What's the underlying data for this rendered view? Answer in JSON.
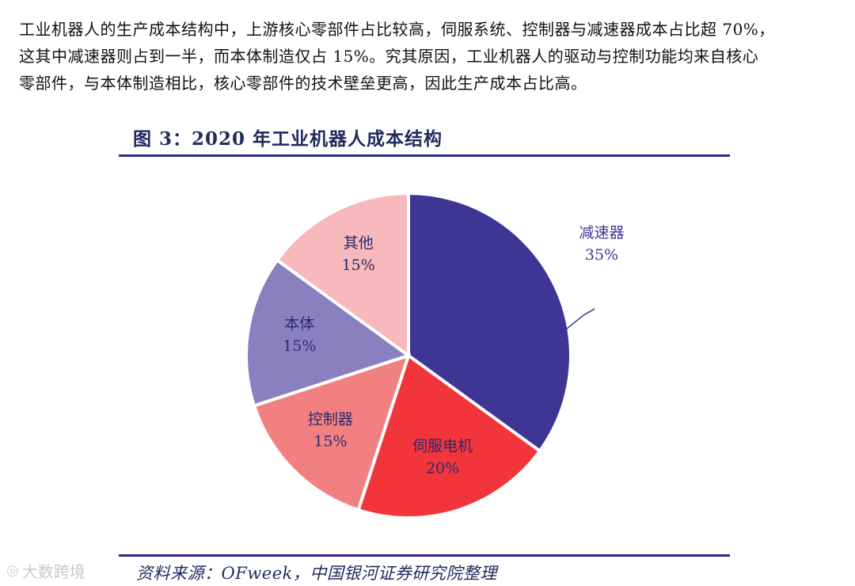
{
  "paragraph": [
    "工业机器人的生产成本结构中，上游核心零部件占比较高，伺服系统、控制器与减速器成本占比超 70%，",
    "这其中减速器则占到一半，而本体制造仅占 15%。究其原因，工业机器人的驱动与控制功能均来自核心",
    "零部件，与本体制造相比，核心零部件的技术壁垒更高，因此生产成本占比高。"
  ],
  "figure_title": "图 3：2020 年工业机器人成本结构",
  "source": "资料来源：OFweek，中国银河证券研究院整理",
  "watermark": "大数跨境",
  "watermark_icon": "logo-icon",
  "chart_data": {
    "type": "pie",
    "start_angle_deg": 0,
    "direction": "clockwise",
    "slices": [
      {
        "label": "减速器",
        "value": 35,
        "pct_text": "35%",
        "color": "#3f3594",
        "text_color": "#3f3594",
        "label_outside": true
      },
      {
        "label": "伺服电机",
        "value": 20,
        "pct_text": "20%",
        "color": "#f2353b",
        "text_color": "#2b2b6e",
        "label_outside": false
      },
      {
        "label": "控制器",
        "value": 15,
        "pct_text": "15%",
        "color": "#f28080",
        "text_color": "#2b2b6e",
        "label_outside": false
      },
      {
        "label": "本体",
        "value": 15,
        "pct_text": "15%",
        "color": "#8a80c0",
        "text_color": "#2b2b6e",
        "label_outside": false
      },
      {
        "label": "其他",
        "value": 15,
        "pct_text": "15%",
        "color": "#f7b9bb",
        "text_color": "#2b2b6e",
        "label_outside": false
      }
    ]
  }
}
